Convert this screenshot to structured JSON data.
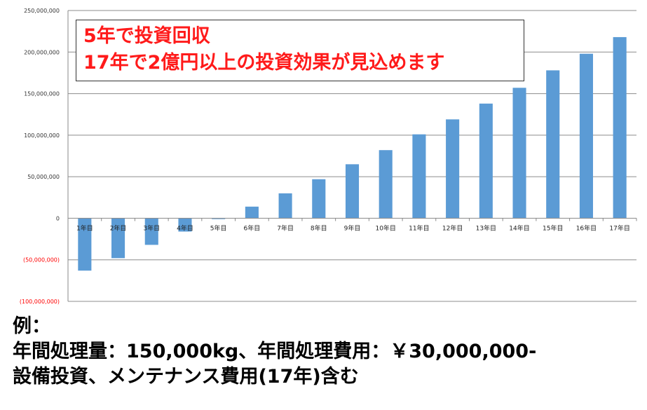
{
  "chart_data": {
    "type": "bar",
    "categories": [
      "1年目",
      "2年目",
      "3年目",
      "4年目",
      "5年目",
      "6年目",
      "7年目",
      "8年目",
      "9年目",
      "10年目",
      "11年目",
      "12年目",
      "13年目",
      "14年目",
      "15年目",
      "16年目",
      "17年目"
    ],
    "values": [
      -63000000,
      -48000000,
      -32000000,
      -16000000,
      -1000000,
      14000000,
      30000000,
      47000000,
      65000000,
      82000000,
      101000000,
      119000000,
      138000000,
      157000000,
      178000000,
      198000000,
      218000000
    ],
    "ylim": [
      -100000000,
      250000000
    ],
    "yticks": [
      250000000,
      200000000,
      150000000,
      100000000,
      50000000,
      0,
      -50000000,
      -100000000
    ],
    "ytick_labels": [
      "250,000,000",
      "200,000,000",
      "150,000,000",
      "100,000,000",
      "50,000,000",
      "0",
      "(50,000,000)",
      "(100,000,000)"
    ],
    "grid": true,
    "bar_color": "#5b9bd5",
    "negative_label_color": "#ff0000"
  },
  "callout": {
    "line1": "5年で投資回収",
    "line2": "17年で2億円以上の投資効果が見込めます",
    "color": "#ff1a1a"
  },
  "note": {
    "line1": "例：",
    "line2": "年間処理量：150,000kg、年間処理費用：￥30,000,000-",
    "line3": "設備投資、メンテナンス費用(17年)含む"
  }
}
